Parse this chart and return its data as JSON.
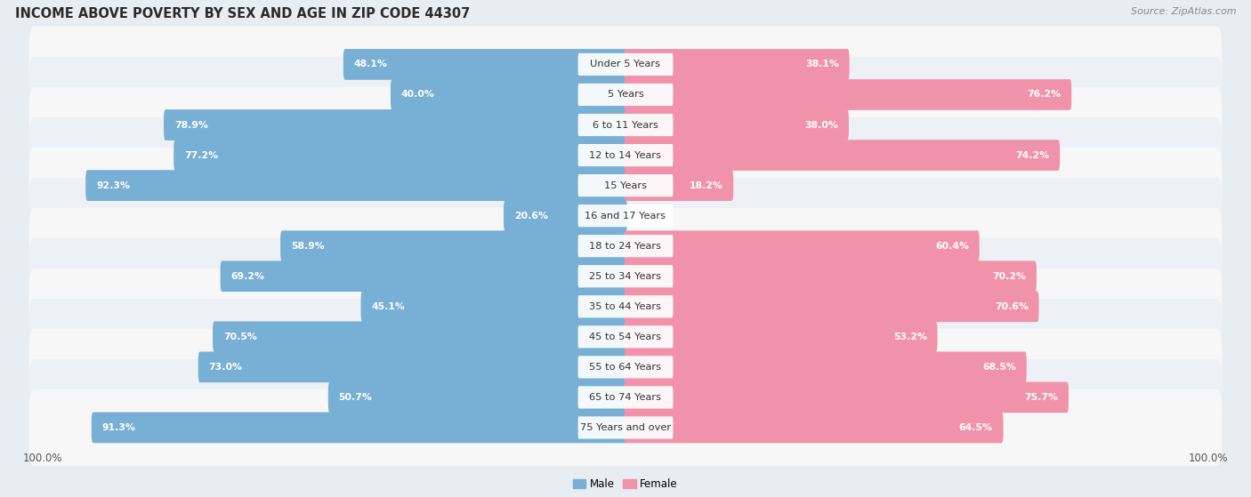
{
  "title": "INCOME ABOVE POVERTY BY SEX AND AGE IN ZIP CODE 44307",
  "source": "Source: ZipAtlas.com",
  "categories": [
    "Under 5 Years",
    "5 Years",
    "6 to 11 Years",
    "12 to 14 Years",
    "15 Years",
    "16 and 17 Years",
    "18 to 24 Years",
    "25 to 34 Years",
    "35 to 44 Years",
    "45 to 54 Years",
    "55 to 64 Years",
    "65 to 74 Years",
    "75 Years and over"
  ],
  "male_values": [
    48.1,
    40.0,
    78.9,
    77.2,
    92.3,
    20.6,
    58.9,
    69.2,
    45.1,
    70.5,
    73.0,
    50.7,
    91.3
  ],
  "female_values": [
    38.1,
    76.2,
    38.0,
    74.2,
    18.2,
    0.0,
    60.4,
    70.2,
    70.6,
    53.2,
    68.5,
    75.7,
    64.5
  ],
  "male_color": "#78afd4",
  "female_color": "#f093aa",
  "male_label": "Male",
  "female_label": "Female",
  "max_value": 100.0,
  "background_color": "#e8edf2",
  "row_colors": [
    "#f7f7f7",
    "#edf1f5"
  ],
  "title_fontsize": 10.5,
  "cat_fontsize": 8.2,
  "value_fontsize": 7.8,
  "source_fontsize": 8.0,
  "legend_fontsize": 8.5,
  "axis_fontsize": 8.5
}
